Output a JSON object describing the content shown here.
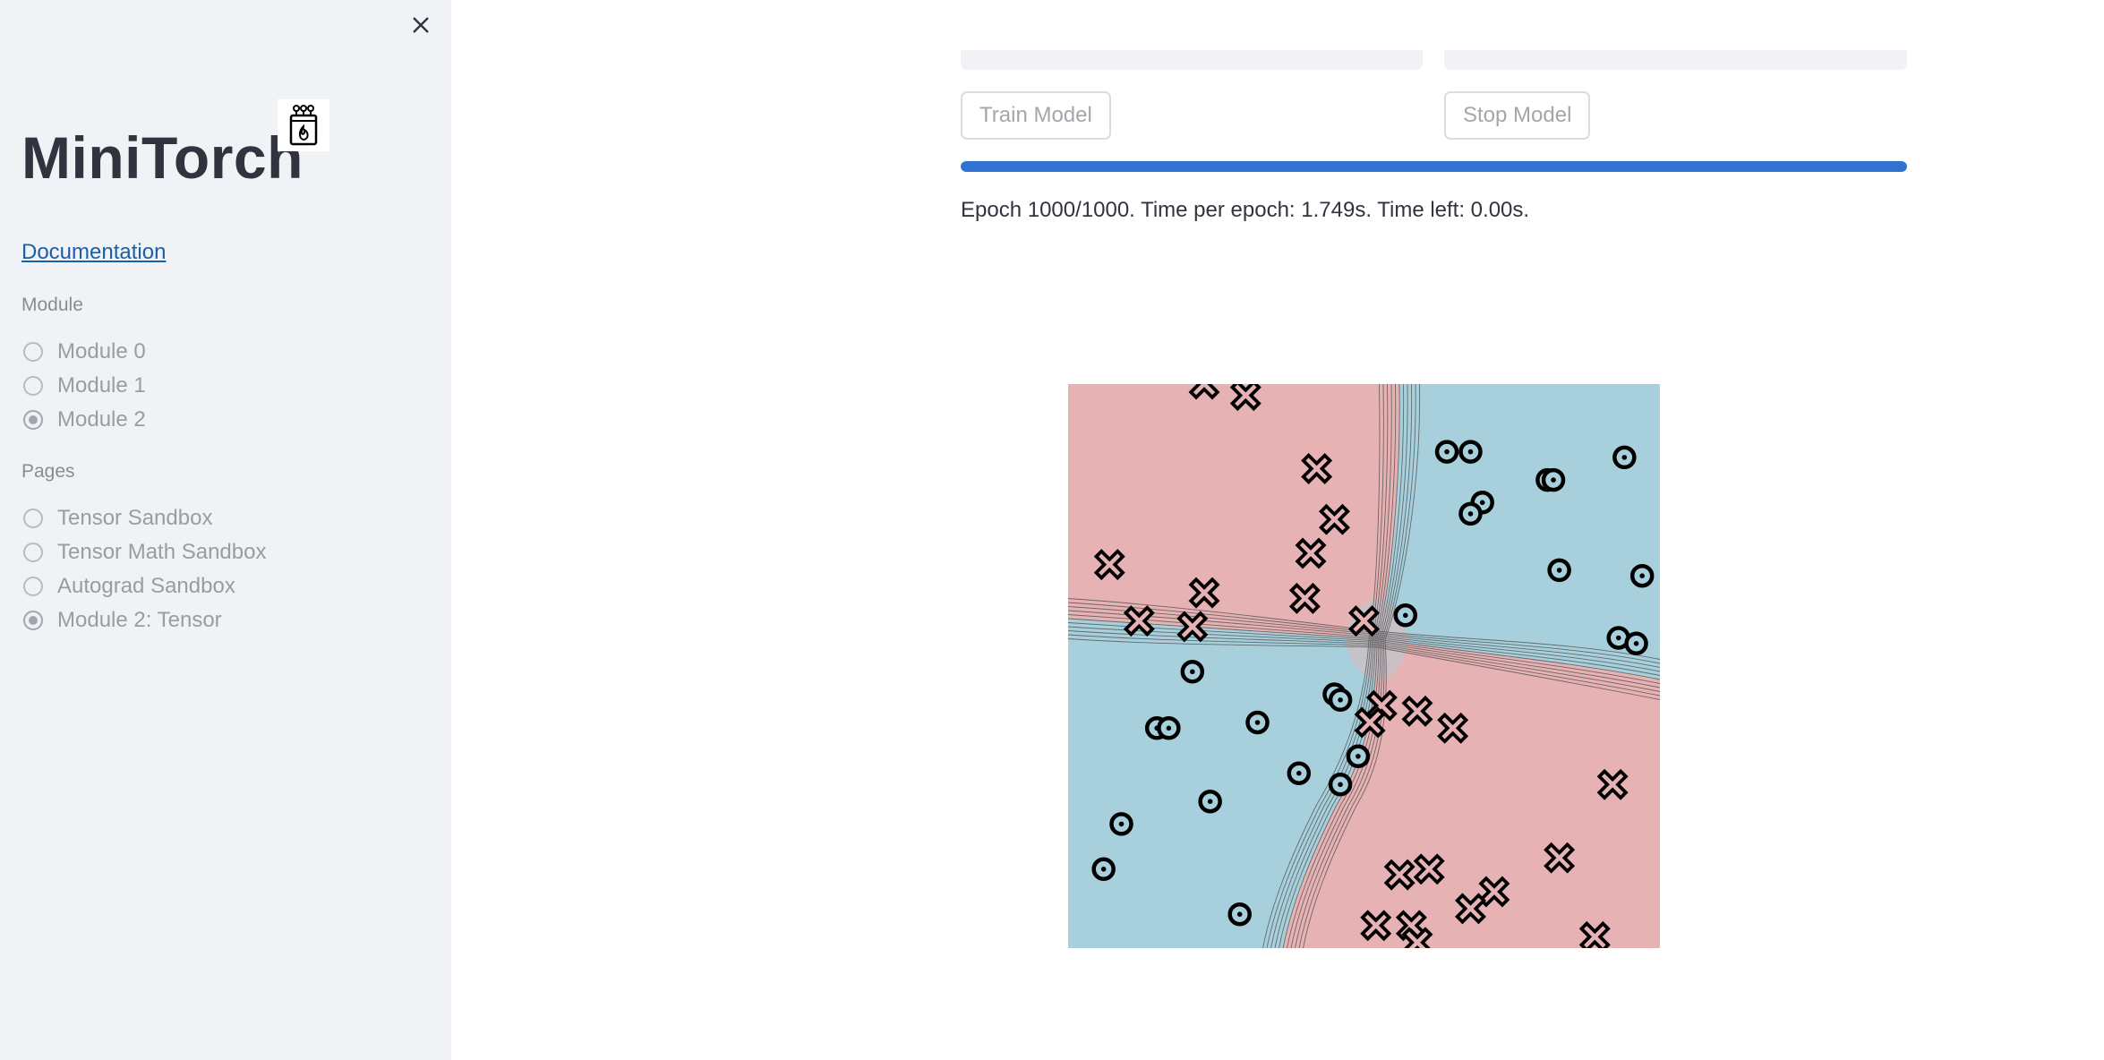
{
  "sidebar": {
    "app_title": "MiniTorch",
    "doc_link": "Documentation",
    "module_group": {
      "label": "Module",
      "options": [
        "Module 0",
        "Module 1",
        "Module 2"
      ],
      "selected": "Module 2"
    },
    "pages_group": {
      "label": "Pages",
      "options": [
        "Tensor Sandbox",
        "Tensor Math Sandbox",
        "Autograd Sandbox",
        "Module 2: Tensor"
      ],
      "selected": "Module 2: Tensor"
    }
  },
  "main": {
    "train_button": "Train Model",
    "stop_button": "Stop Model",
    "progress_fraction": 1.0,
    "status": "Epoch 1000/1000. Time per epoch: 1.749s. Time left: 0.00s."
  },
  "colors": {
    "accent": "#2f72cf",
    "class_red": "#e6b2b4",
    "class_blue": "#a8d0dc",
    "sidebar_bg": "#f0f2f6"
  },
  "icons": [
    "close-icon",
    "minitorch-logo-icon",
    "circle-marker",
    "x-marker"
  ],
  "chart_data": {
    "type": "scatter",
    "title": "",
    "xlabel": "",
    "ylabel": "",
    "xlim": [
      0,
      1
    ],
    "ylim": [
      0,
      1
    ],
    "grid": false,
    "decision_boundary": "contour, red top-left and bottom-right, blue top-right and bottom-left",
    "series": [
      {
        "marker": "x",
        "color": "#e6b2b4",
        "points": [
          [
            0.23,
            1.0
          ],
          [
            0.3,
            0.98
          ],
          [
            0.42,
            0.85
          ],
          [
            0.45,
            0.76
          ],
          [
            0.07,
            0.68
          ],
          [
            0.41,
            0.7
          ],
          [
            0.23,
            0.63
          ],
          [
            0.4,
            0.62
          ],
          [
            0.12,
            0.58
          ],
          [
            0.21,
            0.57
          ],
          [
            0.5,
            0.58
          ],
          [
            0.53,
            0.43
          ],
          [
            0.59,
            0.42
          ],
          [
            0.51,
            0.4
          ],
          [
            0.65,
            0.39
          ],
          [
            0.92,
            0.29
          ],
          [
            0.83,
            0.16
          ],
          [
            0.56,
            0.13
          ],
          [
            0.61,
            0.14
          ],
          [
            0.72,
            0.1
          ],
          [
            0.68,
            0.07
          ],
          [
            0.52,
            0.04
          ],
          [
            0.58,
            0.04
          ],
          [
            0.59,
            0.01
          ],
          [
            0.89,
            0.02
          ]
        ]
      },
      {
        "marker": "o",
        "color": "#a8d0dc",
        "points": [
          [
            0.64,
            0.88
          ],
          [
            0.68,
            0.88
          ],
          [
            0.94,
            0.87
          ],
          [
            0.81,
            0.83
          ],
          [
            0.82,
            0.83
          ],
          [
            0.7,
            0.79
          ],
          [
            0.68,
            0.77
          ],
          [
            0.83,
            0.67
          ],
          [
            0.97,
            0.66
          ],
          [
            0.57,
            0.59
          ],
          [
            0.93,
            0.55
          ],
          [
            0.96,
            0.54
          ],
          [
            0.21,
            0.49
          ],
          [
            0.45,
            0.45
          ],
          [
            0.46,
            0.44
          ],
          [
            0.32,
            0.4
          ],
          [
            0.15,
            0.39
          ],
          [
            0.17,
            0.39
          ],
          [
            0.49,
            0.34
          ],
          [
            0.39,
            0.31
          ],
          [
            0.46,
            0.29
          ],
          [
            0.24,
            0.26
          ],
          [
            0.09,
            0.22
          ],
          [
            0.06,
            0.14
          ],
          [
            0.29,
            0.06
          ]
        ]
      }
    ]
  }
}
